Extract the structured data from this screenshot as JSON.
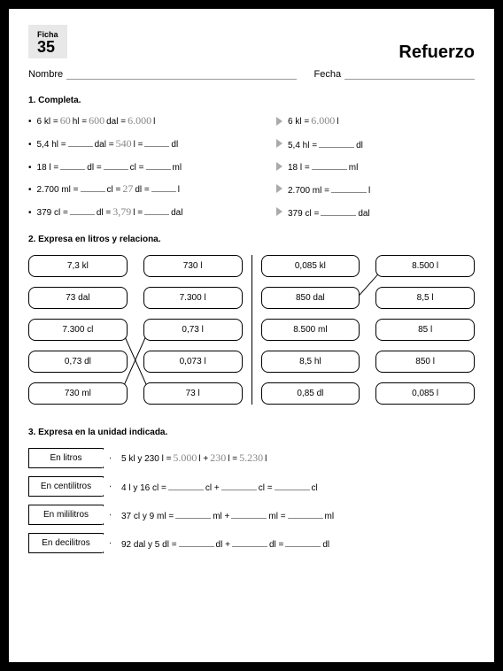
{
  "ficha": {
    "label": "Ficha",
    "number": "35"
  },
  "title": "Refuerzo",
  "header": {
    "nombre": "Nombre",
    "fecha": "Fecha"
  },
  "q1": {
    "title": "1.  Completa.",
    "rows": [
      {
        "left": {
          "pre": "6 kl =",
          "a": "60",
          "au": "hl =",
          "b": "600",
          "bu": "dal =",
          "c": "6.000",
          "cu": "l"
        },
        "right": {
          "pre": "6 kl =",
          "a": "6.000",
          "au": "l"
        }
      },
      {
        "left": {
          "pre": "5,4 hl =",
          "au": "dal =",
          "b": "540",
          "bu": "l =",
          "cu": "dl"
        },
        "right": {
          "pre": "5,4 hl =",
          "au": "dl"
        }
      },
      {
        "left": {
          "pre": "18 l =",
          "au": "dl =",
          "bu": "cl =",
          "cu": "ml"
        },
        "right": {
          "pre": "18 l =",
          "au": "ml"
        }
      },
      {
        "left": {
          "pre": "2.700 ml =",
          "au": "cl =",
          "b": "27",
          "bu": "dl =",
          "cu": "l"
        },
        "right": {
          "pre": "2.700 ml =",
          "au": "l"
        }
      },
      {
        "left": {
          "pre": "379 cl =",
          "au": "dl =",
          "b": "3,79",
          "bu": "l =",
          "cu": "dal"
        },
        "right": {
          "pre": "379 cl =",
          "au": "dal"
        }
      }
    ]
  },
  "q2": {
    "title": "2.  Expresa en litros y relaciona.",
    "leftA": [
      "7,3 kl",
      "73 dal",
      "7.300 cl",
      "0,73 dl",
      "730 ml"
    ],
    "leftB": [
      "730 l",
      "7.300 l",
      "0,73 l",
      "0,073 l",
      "73 l"
    ],
    "rightA": [
      "0,085 kl",
      "850 dal",
      "8.500 ml",
      "8,5 hl",
      "0,85 dl"
    ],
    "rightB": [
      "8.500 l",
      "8,5 l",
      "85 l",
      "850 l",
      "0,085 l"
    ]
  },
  "q3": {
    "title": "3.  Expresa en la unidad indicada.",
    "rows": [
      {
        "label": "En litros",
        "pre": "5 kl y 230 l =",
        "a": "5.000",
        "mid": "l +",
        "b": "230",
        "mid2": "l =",
        "c": "5.230",
        "u": "l"
      },
      {
        "label": "En centilitros",
        "pre": "4 l y 16 cl =",
        "mid": "cl +",
        "mid2": "cl =",
        "u": "cl"
      },
      {
        "label": "En mililitros",
        "pre": "37 cl y 9 ml =",
        "mid": "ml +",
        "mid2": "ml =",
        "u": "ml"
      },
      {
        "label": "En decilitros",
        "pre": "92 dal y 5 dl =",
        "mid": "dl +",
        "mid2": "dl =",
        "u": "dl"
      }
    ]
  }
}
